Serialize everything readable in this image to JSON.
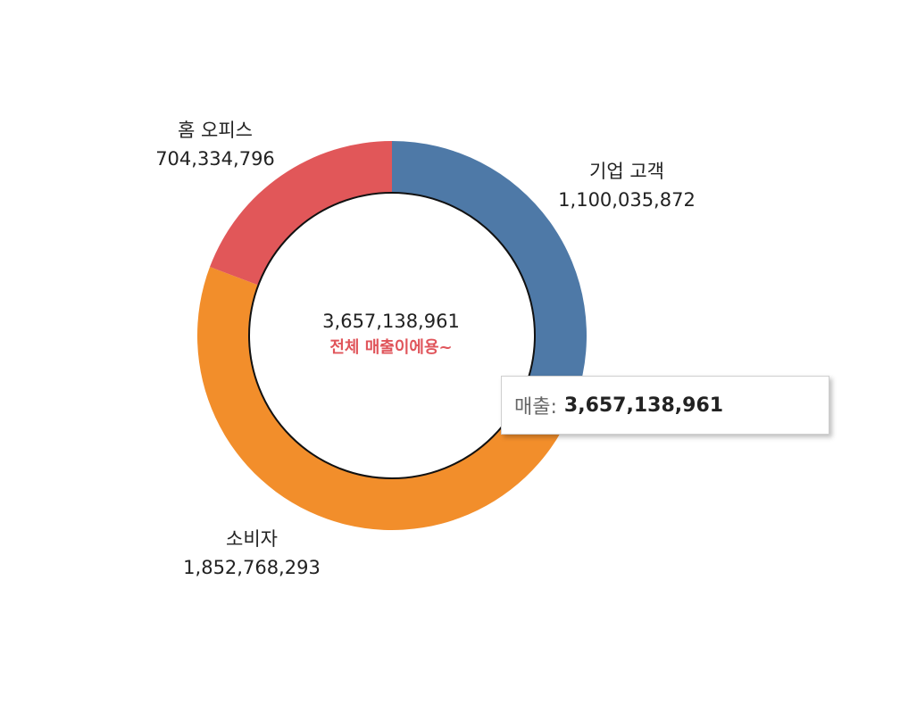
{
  "chart_data": {
    "type": "pie",
    "variant": "donut",
    "segments": [
      {
        "label": "기업 고객",
        "value": 1100035872,
        "value_text": "1,100,035,872",
        "color": "#4e79a7"
      },
      {
        "label": "소비자",
        "value": 1852768293,
        "value_text": "1,852,768,293",
        "color": "#f28e2b"
      },
      {
        "label": "홈 오피스",
        "value": 704334796,
        "value_text": "704,334,796",
        "color": "#e15759"
      }
    ],
    "center": {
      "total_text": "3,657,138,961",
      "caption": "전체 매출이에용~",
      "caption_color": "#e0555b"
    }
  },
  "tooltip": {
    "key": "매출:",
    "value": "3,657,138,961"
  }
}
